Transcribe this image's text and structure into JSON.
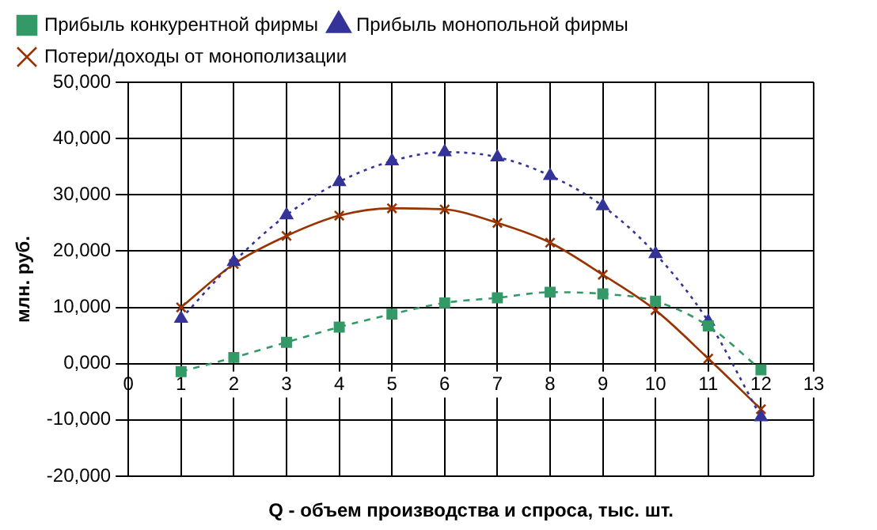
{
  "chart_data": {
    "type": "line",
    "xlabel": "Q - объем производства и спроса, тыс. шт.",
    "ylabel": "млн. руб.",
    "x": [
      1,
      2,
      3,
      4,
      5,
      6,
      7,
      8,
      9,
      10,
      11,
      12
    ],
    "xlim": [
      0,
      13
    ],
    "xticks": [
      0,
      1,
      2,
      3,
      4,
      5,
      6,
      7,
      8,
      9,
      10,
      11,
      12,
      13
    ],
    "ylim": [
      -20000,
      50000
    ],
    "yticks": [
      {
        "value": -20000,
        "label": "-20,000"
      },
      {
        "value": -10000,
        "label": "-10,000"
      },
      {
        "value": 0,
        "label": "0,000"
      },
      {
        "value": 10000,
        "label": "10,000"
      },
      {
        "value": 20000,
        "label": "20,000"
      },
      {
        "value": 30000,
        "label": "30,000"
      },
      {
        "value": 40000,
        "label": "40,000"
      },
      {
        "value": 50000,
        "label": "50,000"
      }
    ],
    "grid": true,
    "legend": "top",
    "series": [
      {
        "name": "Прибыль конкурентной фирмы",
        "color": "#339966",
        "marker": "square",
        "line_style": "dashed",
        "values": [
          -1400,
          1100,
          3800,
          6500,
          8800,
          10800,
          11700,
          12700,
          12400,
          11100,
          6700,
          -1100
        ]
      },
      {
        "name": "Прибыль монопольной фирмы",
        "color": "#333399",
        "marker": "triangle",
        "line_style": "dotted",
        "values": [
          8000,
          18100,
          26400,
          32300,
          36000,
          37600,
          36700,
          33400,
          28000,
          19500,
          7500,
          -9500
        ]
      },
      {
        "name": "Потери/доходы от монополизации",
        "color": "#993300",
        "marker": "cross",
        "line_style": "solid",
        "values": [
          10000,
          17700,
          22700,
          26300,
          27600,
          27400,
          25000,
          21500,
          15800,
          9500,
          900,
          -8100
        ]
      }
    ]
  }
}
